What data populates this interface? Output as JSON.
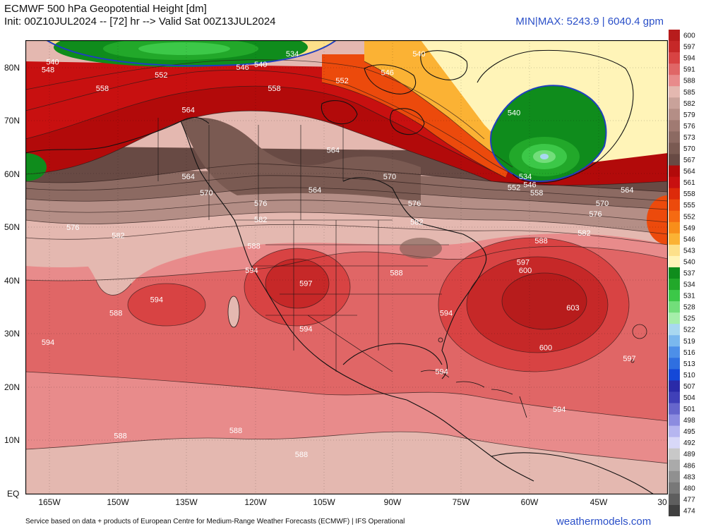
{
  "header": {
    "title": "ECMWF 500 hPa Geopotential Height [dm]",
    "subtitle": "Init: 00Z10JUL2024 -- [72] hr --> Valid Sat 00Z13JUL2024",
    "minmax": "MIN|MAX: 5243.9 | 6040.4 gpm"
  },
  "lat_labels": [
    "80N",
    "70N",
    "60N",
    "50N",
    "40N",
    "30N",
    "20N",
    "10N",
    "EQ"
  ],
  "lon_labels": [
    "165W",
    "150W",
    "135W",
    "120W",
    "105W",
    "90W",
    "75W",
    "60W",
    "45W",
    "30"
  ],
  "legend": {
    "levels": [
      "600",
      "597",
      "594",
      "591",
      "588",
      "585",
      "582",
      "579",
      "576",
      "573",
      "570",
      "567",
      "564",
      "561",
      "558",
      "555",
      "552",
      "549",
      "546",
      "543",
      "540",
      "537",
      "534",
      "531",
      "528",
      "525",
      "522",
      "519",
      "516",
      "513",
      "510",
      "507",
      "504",
      "501",
      "498",
      "495",
      "492",
      "489",
      "486",
      "483",
      "480",
      "477",
      "474"
    ],
    "colors": [
      "#b71c1c",
      "#c62828",
      "#d84343",
      "#e06666",
      "#e88b8b",
      "#e4b8b0",
      "#c9a29a",
      "#b48e86",
      "#a07a72",
      "#8c6a62",
      "#7a5a52",
      "#684a44",
      "#b20a0a",
      "#c81010",
      "#dd2a0a",
      "#ec4a0c",
      "#f56a12",
      "#f88e1a",
      "#fbb234",
      "#fde08a",
      "#fff4b8",
      "#0f8c1c",
      "#22a82a",
      "#3cc848",
      "#72de7a",
      "#a6eeaa",
      "#a8d8f0",
      "#7ab8ee",
      "#4d8fe8",
      "#2f6fe0",
      "#1448d8",
      "#2a2aa8",
      "#4040b8",
      "#6666cc",
      "#8c8ce0",
      "#b6b6f0",
      "#d8d8f8",
      "#c8c8c8",
      "#aaaaaa",
      "#909090",
      "#787878",
      "#5e5e5e",
      "#404040"
    ]
  },
  "contour_labels": [
    {
      "text": "540",
      "lon": -166,
      "lat": 81
    },
    {
      "text": "548",
      "lon": -167,
      "lat": 79.5
    },
    {
      "text": "552",
      "lon": -142,
      "lat": 78.5
    },
    {
      "text": "546",
      "lon": -124,
      "lat": 80
    },
    {
      "text": "534",
      "lon": -113,
      "lat": 82.5
    },
    {
      "text": "540",
      "lon": -120,
      "lat": 80.5
    },
    {
      "text": "540",
      "lon": -85,
      "lat": 82.5
    },
    {
      "text": "552",
      "lon": -102,
      "lat": 77.5
    },
    {
      "text": "558",
      "lon": -155,
      "lat": 76
    },
    {
      "text": "558",
      "lon": -117,
      "lat": 76
    },
    {
      "text": "546",
      "lon": -92,
      "lat": 79
    },
    {
      "text": "564",
      "lon": -136,
      "lat": 72
    },
    {
      "text": "564",
      "lon": -104,
      "lat": 64.5
    },
    {
      "text": "540",
      "lon": -64,
      "lat": 71.5
    },
    {
      "text": "534",
      "lon": -61.5,
      "lat": 59.5
    },
    {
      "text": "546",
      "lon": -60.5,
      "lat": 58
    },
    {
      "text": "552",
      "lon": -64,
      "lat": 57.5
    },
    {
      "text": "558",
      "lon": -59,
      "lat": 56.5
    },
    {
      "text": "564",
      "lon": -136,
      "lat": 59.5
    },
    {
      "text": "570",
      "lon": -132,
      "lat": 56.5
    },
    {
      "text": "564",
      "lon": -108,
      "lat": 57
    },
    {
      "text": "570",
      "lon": -91.5,
      "lat": 59.5
    },
    {
      "text": "564",
      "lon": -39,
      "lat": 57
    },
    {
      "text": "570",
      "lon": -44.5,
      "lat": 54.5
    },
    {
      "text": "576",
      "lon": -120,
      "lat": 54.5
    },
    {
      "text": "576",
      "lon": -86,
      "lat": 54.5
    },
    {
      "text": "576",
      "lon": -46,
      "lat": 52.5
    },
    {
      "text": "576",
      "lon": -161.5,
      "lat": 50
    },
    {
      "text": "582",
      "lon": -151.5,
      "lat": 48.5
    },
    {
      "text": "582",
      "lon": -120,
      "lat": 51.5
    },
    {
      "text": "582",
      "lon": -85.5,
      "lat": 51
    },
    {
      "text": "582",
      "lon": -48.5,
      "lat": 49
    },
    {
      "text": "588",
      "lon": -58,
      "lat": 47.5
    },
    {
      "text": "588",
      "lon": -121.5,
      "lat": 46.5
    },
    {
      "text": "588",
      "lon": -90,
      "lat": 41.5
    },
    {
      "text": "594",
      "lon": -122,
      "lat": 42
    },
    {
      "text": "597",
      "lon": -110,
      "lat": 39.5
    },
    {
      "text": "597",
      "lon": -62,
      "lat": 43.5
    },
    {
      "text": "600",
      "lon": -61.5,
      "lat": 42
    },
    {
      "text": "603",
      "lon": -51,
      "lat": 35
    },
    {
      "text": "600",
      "lon": -57,
      "lat": 27.5
    },
    {
      "text": "597",
      "lon": -38.5,
      "lat": 25.5
    },
    {
      "text": "594",
      "lon": -143,
      "lat": 36.5
    },
    {
      "text": "588",
      "lon": -152,
      "lat": 34
    },
    {
      "text": "594",
      "lon": -167,
      "lat": 28.5
    },
    {
      "text": "594",
      "lon": -110,
      "lat": 31
    },
    {
      "text": "594",
      "lon": -79,
      "lat": 34
    },
    {
      "text": "594",
      "lon": -80,
      "lat": 23
    },
    {
      "text": "594",
      "lon": -54,
      "lat": 16
    },
    {
      "text": "588",
      "lon": -151,
      "lat": 11
    },
    {
      "text": "588",
      "lon": -125.5,
      "lat": 12
    },
    {
      "text": "588",
      "lon": -111,
      "lat": 7.5
    }
  ],
  "footer": {
    "credit": "Service based on data + products of European Centre for Medium-Range Weather Forecasts (ECMWF) | IFS Operational",
    "brand": "weathermodels.com"
  }
}
